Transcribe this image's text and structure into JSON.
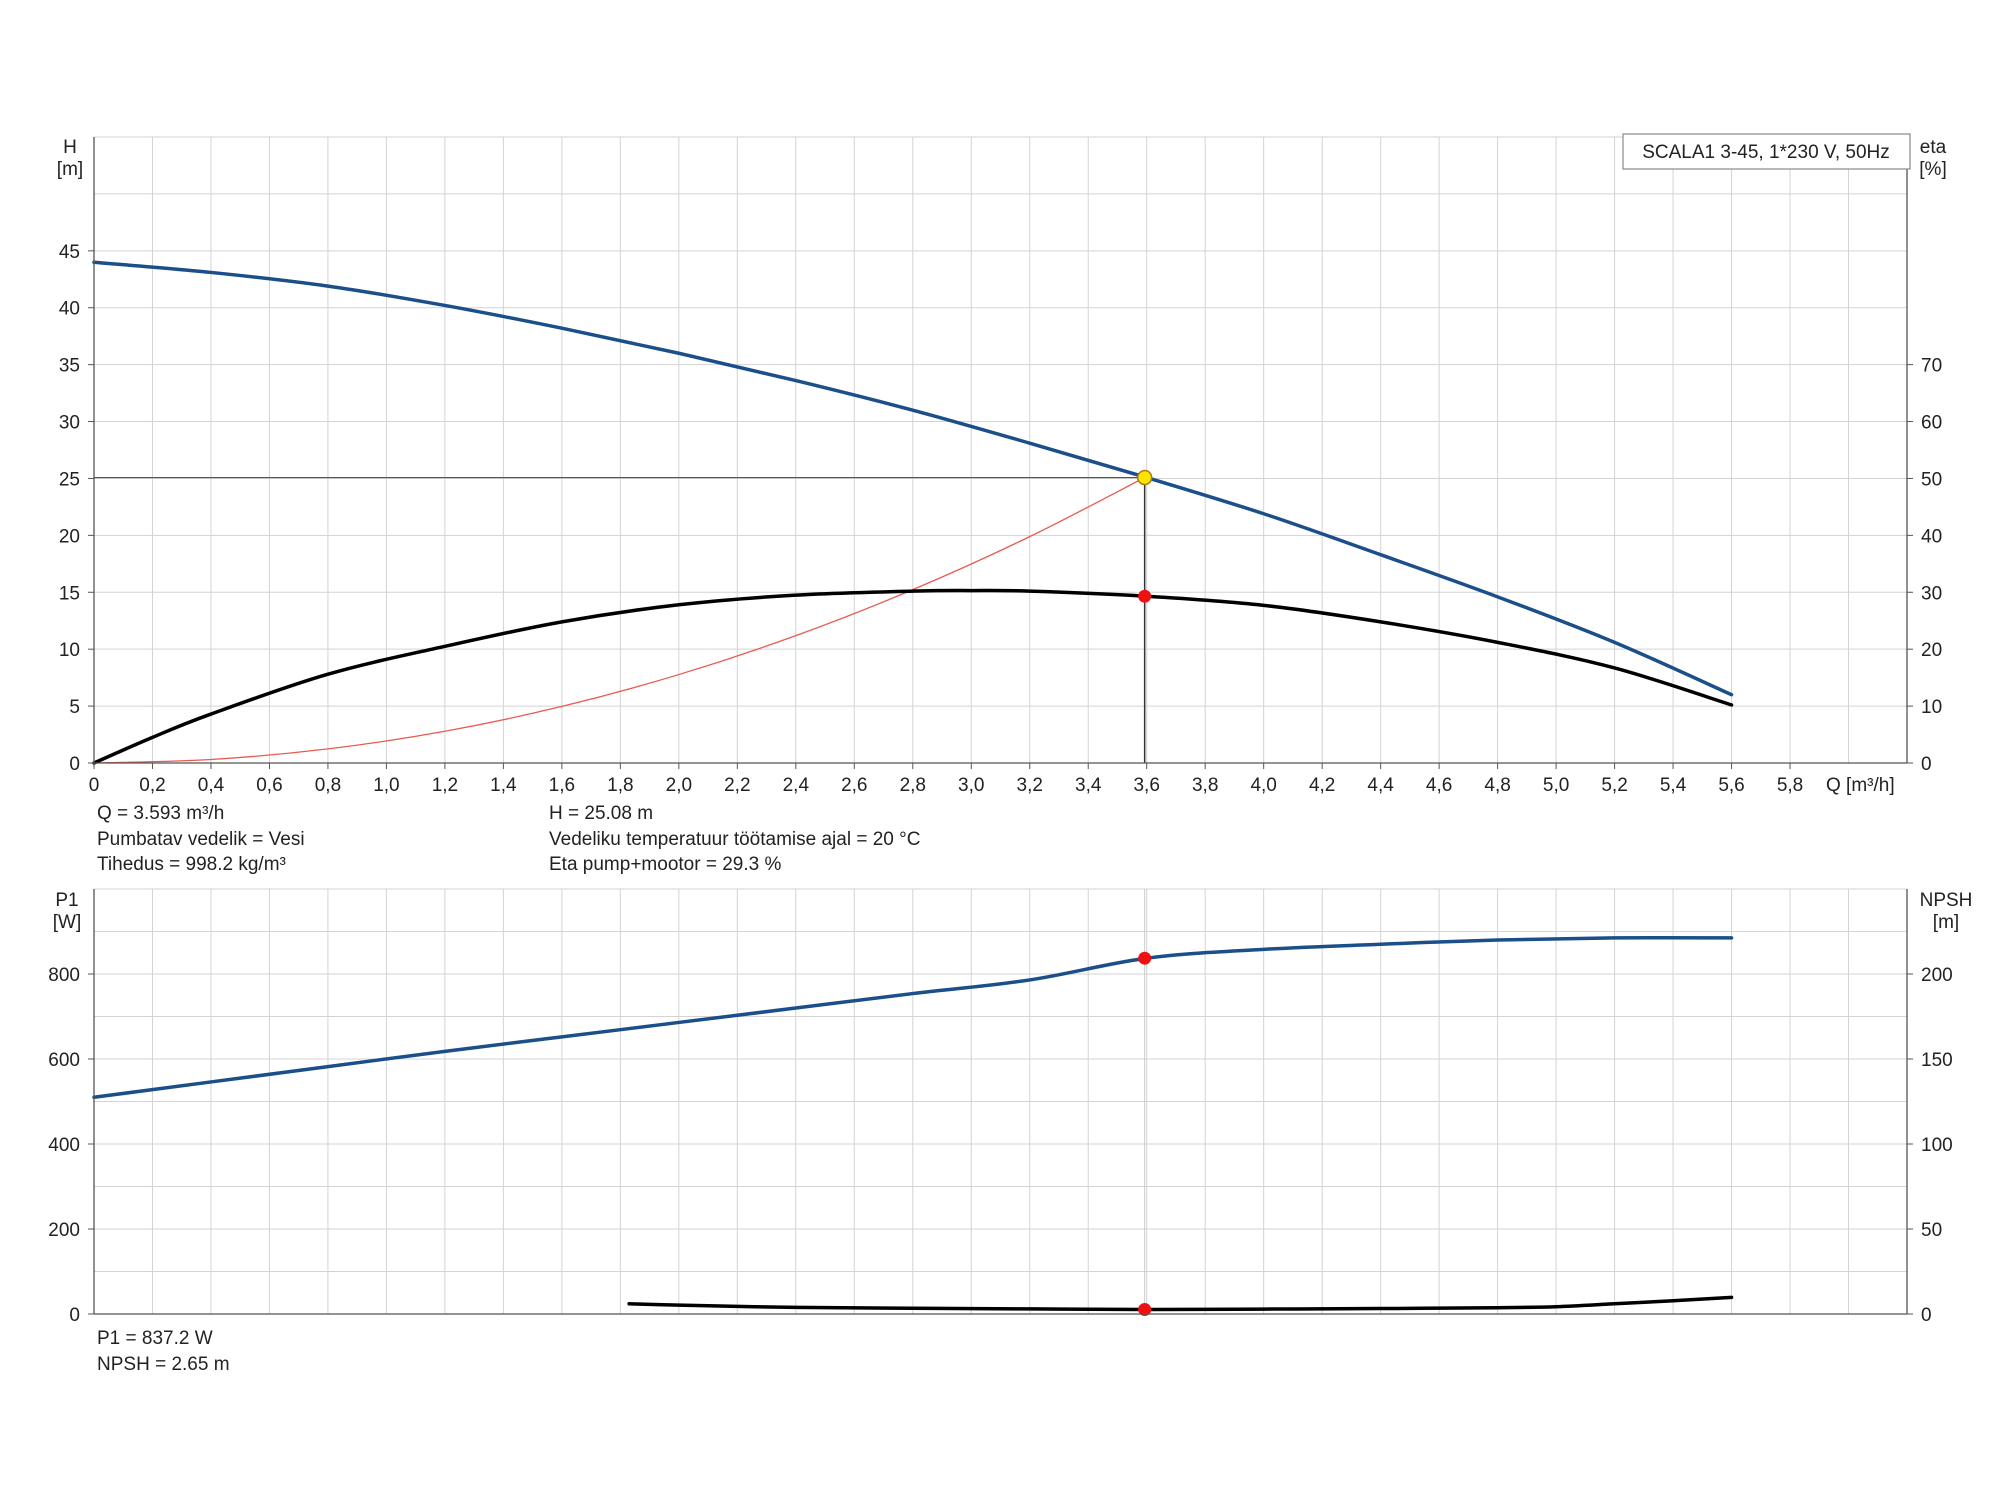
{
  "chart_data": [
    {
      "type": "line",
      "legend_box": "SCALA1 3-45, 1*230 V, 50Hz",
      "y_left_label": [
        "H",
        "[m]"
      ],
      "y_right_label": [
        "eta",
        "[%]"
      ],
      "x_label": "Q [m³/h]",
      "x_ticks": [
        "0",
        "0,2",
        "0,4",
        "0,6",
        "0,8",
        "1,0",
        "1,2",
        "1,4",
        "1,6",
        "1,8",
        "2,0",
        "2,2",
        "2,4",
        "2,6",
        "2,8",
        "3,0",
        "3,2",
        "3,4",
        "3,6",
        "3,8",
        "4,0",
        "4,2",
        "4,4",
        "4,6",
        "4,8",
        "5,0",
        "5,2",
        "5,4",
        "5,6",
        "5,8"
      ],
      "y_left_ticks": [
        "0",
        "5",
        "10",
        "15",
        "20",
        "25",
        "30",
        "35",
        "40",
        "45"
      ],
      "y_right_ticks": [
        "0",
        "10",
        "20",
        "30",
        "40",
        "50",
        "60",
        "70"
      ],
      "xlim": [
        0,
        6.2
      ],
      "ylim_left": [
        0,
        55
      ],
      "ylim_right": [
        0,
        110
      ],
      "series": [
        {
          "key": "H",
          "color": "#1b4f8a",
          "points": [
            [
              0,
              44.0
            ],
            [
              0.4,
              43.1
            ],
            [
              0.8,
              41.9
            ],
            [
              1.2,
              40.2
            ],
            [
              1.6,
              38.2
            ],
            [
              2.0,
              36.0
            ],
            [
              2.4,
              33.6
            ],
            [
              2.8,
              31.0
            ],
            [
              3.2,
              28.1
            ],
            [
              3.6,
              25.08
            ],
            [
              4.0,
              21.9
            ],
            [
              4.4,
              18.3
            ],
            [
              4.8,
              14.6
            ],
            [
              5.2,
              10.6
            ],
            [
              5.6,
              6.0
            ]
          ]
        },
        {
          "key": "eta",
          "color": "#000000",
          "points": [
            [
              0,
              0
            ],
            [
              0.2,
              4.5
            ],
            [
              0.4,
              8.6
            ],
            [
              0.8,
              15.6
            ],
            [
              1.2,
              20.5
            ],
            [
              1.6,
              24.8
            ],
            [
              2.0,
              27.8
            ],
            [
              2.4,
              29.5
            ],
            [
              2.8,
              30.2
            ],
            [
              3.0,
              30.3
            ],
            [
              3.2,
              30.2
            ],
            [
              3.6,
              29.3
            ],
            [
              4.0,
              27.7
            ],
            [
              4.4,
              24.8
            ],
            [
              4.8,
              21.2
            ],
            [
              5.2,
              16.7
            ],
            [
              5.6,
              10.2
            ]
          ]
        },
        {
          "key": "system",
          "color": "#e85a4f",
          "points": [
            [
              0,
              0
            ],
            [
              0.4,
              0.31
            ],
            [
              0.8,
              1.24
            ],
            [
              1.2,
              2.79
            ],
            [
              1.6,
              4.97
            ],
            [
              2.0,
              7.77
            ],
            [
              2.4,
              11.19
            ],
            [
              2.8,
              15.23
            ],
            [
              3.2,
              19.89
            ],
            [
              3.593,
              25.08
            ]
          ]
        }
      ],
      "operating_point": {
        "Q": 3.593,
        "H": 25.08,
        "eta": 29.3
      }
    },
    {
      "type": "line",
      "y_left_label": [
        "P1",
        "[W]"
      ],
      "y_right_label": [
        "NPSH",
        "[m]"
      ],
      "y_left_ticks": [
        "0",
        "200",
        "400",
        "600",
        "800"
      ],
      "y_right_ticks": [
        "0",
        "50",
        "100",
        "150",
        "200"
      ],
      "xlim": [
        0,
        6.2
      ],
      "ylim_left": [
        0,
        1000
      ],
      "ylim_right": [
        0,
        250
      ],
      "series": [
        {
          "key": "P1",
          "color": "#1b4f8a",
          "points": [
            [
              0,
              510
            ],
            [
              0.4,
              546
            ],
            [
              0.8,
              582
            ],
            [
              1.2,
              618
            ],
            [
              1.6,
              652
            ],
            [
              2.0,
              686
            ],
            [
              2.4,
              720
            ],
            [
              2.8,
              754
            ],
            [
              3.2,
              786
            ],
            [
              3.6,
              837.2
            ],
            [
              4.0,
              858
            ],
            [
              4.4,
              870
            ],
            [
              4.8,
              880
            ],
            [
              5.2,
              885
            ],
            [
              5.6,
              885
            ]
          ]
        },
        {
          "key": "NPSH",
          "color": "#000000",
          "points": [
            [
              1.83,
              6.0
            ],
            [
              2.0,
              5.2
            ],
            [
              2.4,
              3.9
            ],
            [
              2.8,
              3.4
            ],
            [
              3.2,
              3.0
            ],
            [
              3.6,
              2.65
            ],
            [
              4.0,
              2.9
            ],
            [
              4.4,
              3.2
            ],
            [
              4.8,
              3.7
            ],
            [
              5.0,
              4.3
            ],
            [
              5.2,
              6.0
            ],
            [
              5.4,
              7.8
            ],
            [
              5.6,
              9.8
            ]
          ]
        }
      ],
      "operating_point": {
        "Q": 3.593,
        "P1": 837.2,
        "NPSH": 2.65
      }
    }
  ],
  "info_top": {
    "left": [
      "Q = 3.593 m³/h",
      "Pumbatav vedelik = Vesi",
      "Tihedus = 998.2 kg/m³"
    ],
    "right": [
      "H = 25.08 m",
      "Vedeliku temperatuur töötamise ajal = 20 °C",
      "Eta pump+mootor = 29.3 %"
    ]
  },
  "info_bottom": [
    "P1 = 837.2 W",
    "NPSH = 2.65 m"
  ]
}
